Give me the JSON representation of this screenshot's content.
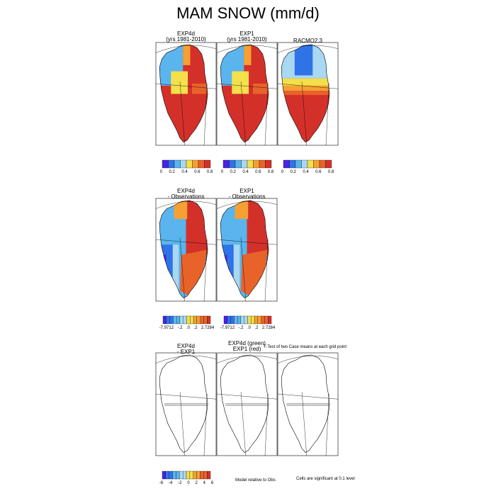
{
  "title": "MAM SNOW (mm/d)",
  "palette": [
    "#4B22E6",
    "#2F73E8",
    "#5AB4EE",
    "#A9D8F2",
    "#F3E04A",
    "#F6A033",
    "#E8632A",
    "#D4302A"
  ],
  "land_color": "#ffffff",
  "ocean_color": "#ffffff",
  "chart_data": [
    {
      "type": "heatmap",
      "row": 1,
      "title_lines": [
        "EXP4d",
        "(yrs 1981-2010)"
      ],
      "colorbar_ticks": [
        "0",
        "0.2",
        "0.4",
        "0.6",
        "0.8"
      ]
    },
    {
      "type": "heatmap",
      "row": 1,
      "title_lines": [
        "EXP1",
        "(yrs 1981-2010)"
      ],
      "colorbar_ticks": [
        "0",
        "0.2",
        "0.4",
        "0.6",
        "0.8"
      ]
    },
    {
      "type": "heatmap",
      "row": 1,
      "title_lines": [
        "RACMO2.3"
      ],
      "colorbar_ticks": [
        "0",
        "0.2",
        "0.4",
        "0.6",
        "0.8"
      ]
    },
    {
      "type": "heatmap",
      "row": 2,
      "title_lines": [
        "EXP4d",
        "- Observations"
      ],
      "colorbar_ticks": [
        "-7.9712",
        "-.2",
        ".0",
        ".2",
        "2.7284"
      ]
    },
    {
      "type": "heatmap",
      "row": 2,
      "title_lines": [
        "EXP1",
        "- Observations"
      ],
      "colorbar_ticks": [
        "-7.9712",
        "-.2",
        ".0",
        ".2",
        "2.7284"
      ]
    },
    {
      "type": "heatmap",
      "row": 3,
      "title_lines": [
        "EXP4d",
        "- EXP1"
      ],
      "colorbar_ticks": [
        "-6",
        "-4",
        "-2",
        "0",
        "2",
        "4",
        "6"
      ]
    },
    {
      "type": "heatmap",
      "row": 3,
      "title_lines": [
        "EXP4d (green)",
        "EXP1 (red)"
      ],
      "colorbar_ticks": []
    },
    {
      "type": "heatmap",
      "row": 3,
      "title_lines": [],
      "colorbar_ticks": []
    }
  ],
  "notes": {
    "ttest": "T-Test of two Case means at each grid point",
    "model_relative": "Model relative to Obs",
    "significance": "Cells are significant at 0.1 level"
  }
}
